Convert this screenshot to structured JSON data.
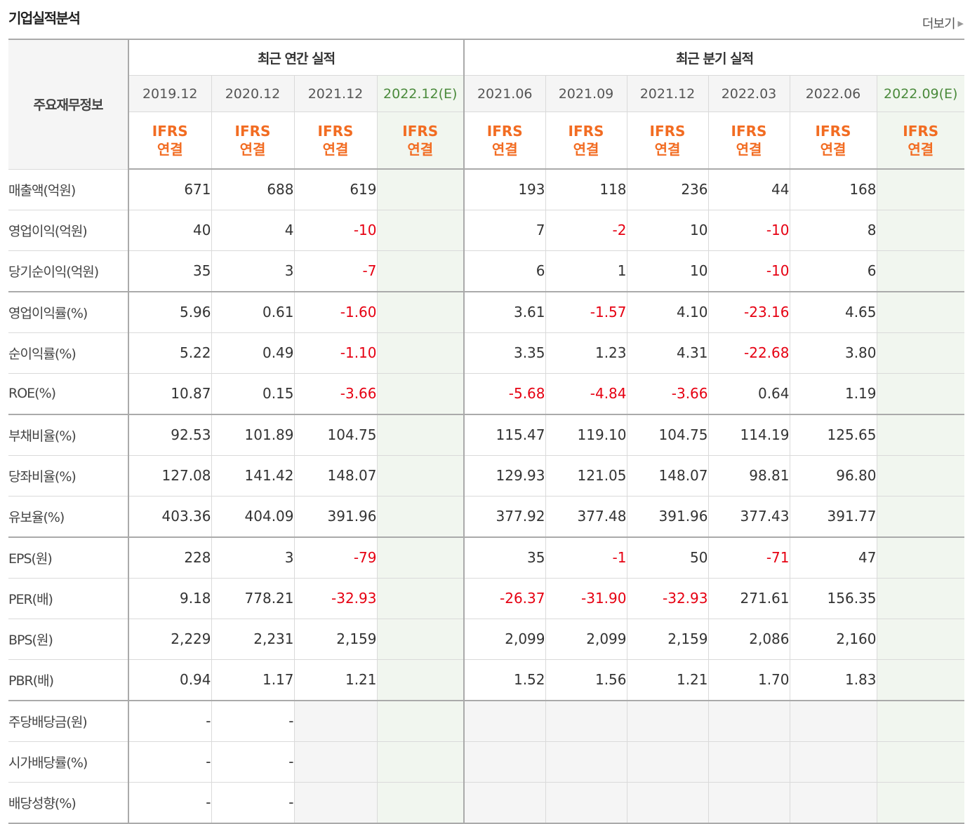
{
  "section_title": "기업실적분석",
  "more_label": "더보기",
  "header": {
    "label": "주요재무정보",
    "annual_group": "최근 연간 실적",
    "quarter_group": "최근 분기 실적",
    "annual_periods": [
      {
        "label": "2019.12",
        "est": ""
      },
      {
        "label": "2020.12",
        "est": ""
      },
      {
        "label": "2021.12",
        "est": ""
      },
      {
        "label": "2022.12",
        "est": "(E)"
      }
    ],
    "quarter_periods": [
      {
        "label": "2021.06",
        "est": ""
      },
      {
        "label": "2021.09",
        "est": ""
      },
      {
        "label": "2021.12",
        "est": ""
      },
      {
        "label": "2022.03",
        "est": ""
      },
      {
        "label": "2022.06",
        "est": ""
      },
      {
        "label": "2022.09",
        "est": "(E)"
      }
    ],
    "basis_line1": "IFRS",
    "basis_line2": "연결"
  },
  "rows": [
    {
      "label": "매출액(억원)",
      "values": [
        "671",
        "688",
        "619",
        "",
        "193",
        "118",
        "236",
        "44",
        "168",
        ""
      ]
    },
    {
      "label": "영업이익(억원)",
      "values": [
        "40",
        "4",
        "-10",
        "",
        "7",
        "-2",
        "10",
        "-10",
        "8",
        ""
      ]
    },
    {
      "label": "당기순이익(억원)",
      "values": [
        "35",
        "3",
        "-7",
        "",
        "6",
        "1",
        "10",
        "-10",
        "6",
        ""
      ]
    },
    {
      "label": "영업이익률(%)",
      "values": [
        "5.96",
        "0.61",
        "-1.60",
        "",
        "3.61",
        "-1.57",
        "4.10",
        "-23.16",
        "4.65",
        ""
      ]
    },
    {
      "label": "순이익률(%)",
      "values": [
        "5.22",
        "0.49",
        "-1.10",
        "",
        "3.35",
        "1.23",
        "4.31",
        "-22.68",
        "3.80",
        ""
      ]
    },
    {
      "label": "ROE(%)",
      "values": [
        "10.87",
        "0.15",
        "-3.66",
        "",
        "-5.68",
        "-4.84",
        "-3.66",
        "0.64",
        "1.19",
        ""
      ]
    },
    {
      "label": "부채비율(%)",
      "values": [
        "92.53",
        "101.89",
        "104.75",
        "",
        "115.47",
        "119.10",
        "104.75",
        "114.19",
        "125.65",
        ""
      ]
    },
    {
      "label": "당좌비율(%)",
      "values": [
        "127.08",
        "141.42",
        "148.07",
        "",
        "129.93",
        "121.05",
        "148.07",
        "98.81",
        "96.80",
        ""
      ]
    },
    {
      "label": "유보율(%)",
      "values": [
        "403.36",
        "404.09",
        "391.96",
        "",
        "377.92",
        "377.48",
        "391.96",
        "377.43",
        "391.77",
        ""
      ]
    },
    {
      "label": "EPS(원)",
      "values": [
        "228",
        "3",
        "-79",
        "",
        "35",
        "-1",
        "50",
        "-71",
        "47",
        ""
      ]
    },
    {
      "label": "PER(배)",
      "values": [
        "9.18",
        "778.21",
        "-32.93",
        "",
        "-26.37",
        "-31.90",
        "-32.93",
        "271.61",
        "156.35",
        ""
      ]
    },
    {
      "label": "BPS(원)",
      "values": [
        "2,229",
        "2,231",
        "2,159",
        "",
        "2,099",
        "2,099",
        "2,159",
        "2,086",
        "2,160",
        ""
      ]
    },
    {
      "label": "PBR(배)",
      "values": [
        "0.94",
        "1.17",
        "1.21",
        "",
        "1.52",
        "1.56",
        "1.21",
        "1.70",
        "1.83",
        ""
      ]
    },
    {
      "label": "주당배당금(원)",
      "values": [
        "-",
        "-",
        "",
        "",
        "",
        "",
        "",
        "",
        "",
        ""
      ]
    },
    {
      "label": "시가배당률(%)",
      "values": [
        "-",
        "-",
        "",
        "",
        "",
        "",
        "",
        "",
        "",
        ""
      ]
    },
    {
      "label": "배당성향(%)",
      "values": [
        "-",
        "-",
        "",
        "",
        "",
        "",
        "",
        "",
        "",
        ""
      ]
    }
  ],
  "colors": {
    "negative": "#e60012",
    "ifrs": "#f26c22",
    "estimate_bg": "#f1f6ef",
    "estimate_text": "#4a8a3b"
  }
}
